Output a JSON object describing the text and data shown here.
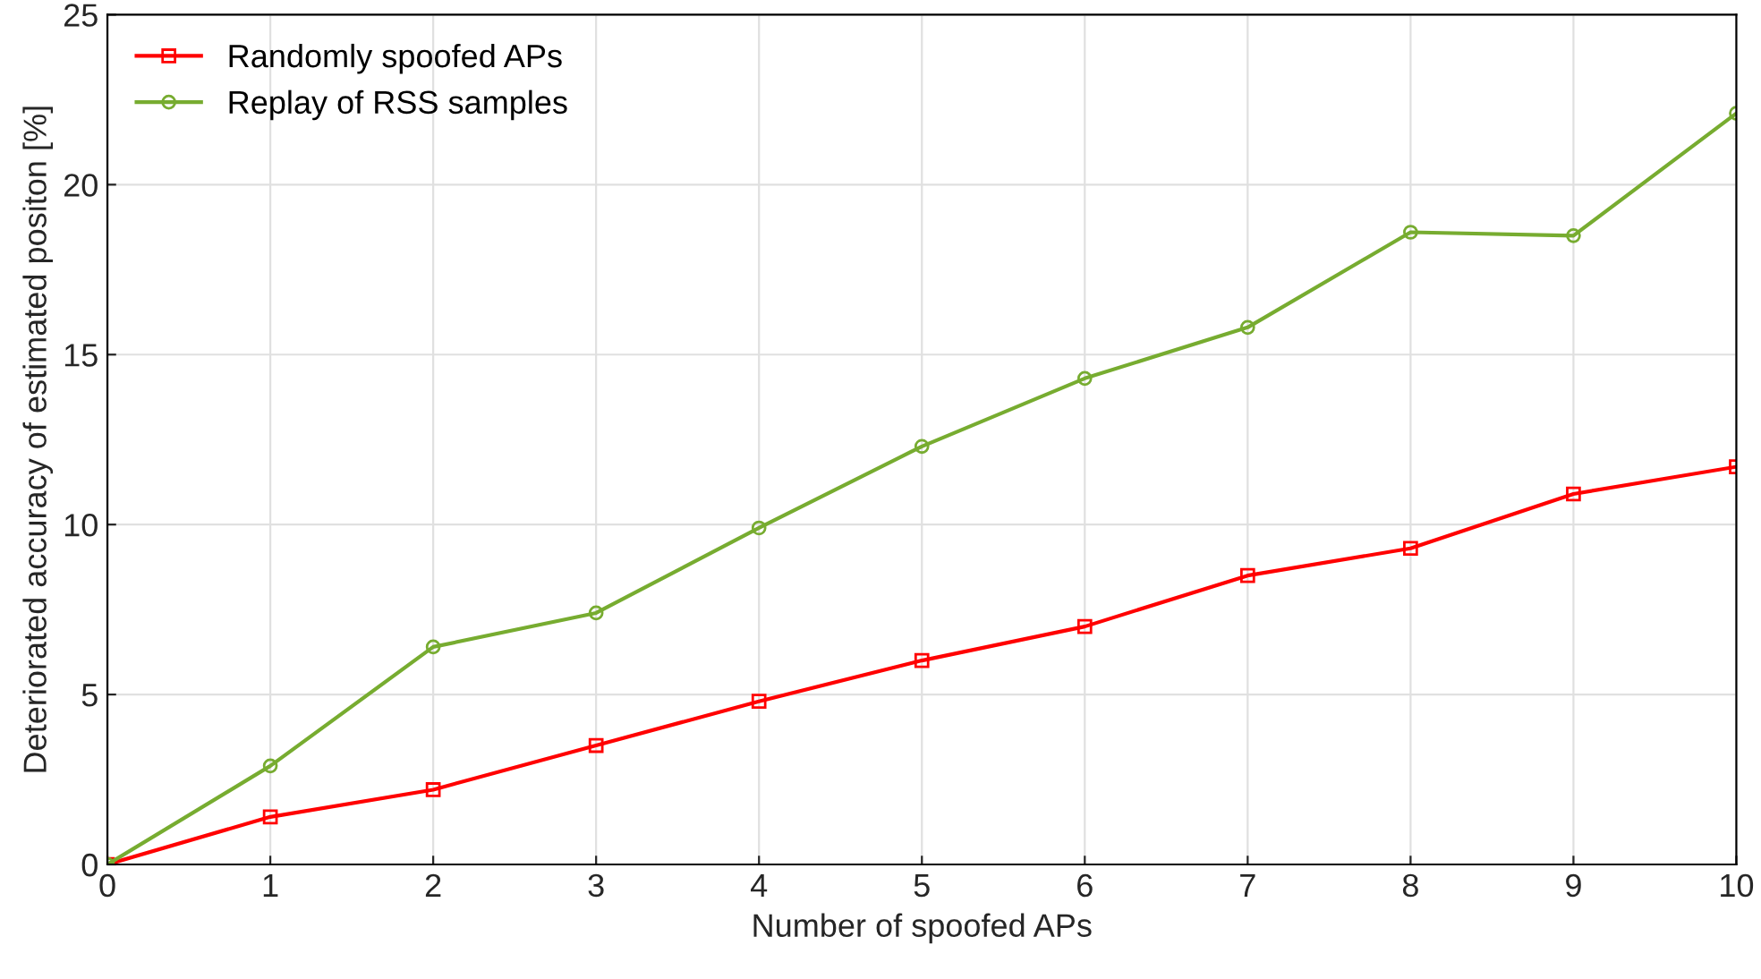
{
  "chart_data": {
    "type": "line",
    "xlabel": "Number of spoofed APs",
    "ylabel": "Deteriorated accuracy of estimated positon [%]",
    "x": [
      0,
      1,
      2,
      3,
      4,
      5,
      6,
      7,
      8,
      9,
      10
    ],
    "series": [
      {
        "name": "Randomly spoofed APs",
        "color": "#ff0000",
        "marker": "square",
        "values": [
          0,
          1.4,
          2.2,
          3.5,
          4.8,
          6.0,
          7.0,
          8.5,
          9.3,
          10.9,
          11.7
        ]
      },
      {
        "name": "Replay of RSS samples",
        "color": "#77ac30",
        "marker": "circle",
        "values": [
          0,
          2.9,
          6.4,
          7.4,
          9.9,
          12.3,
          14.3,
          15.8,
          18.6,
          18.5,
          22.1
        ]
      }
    ],
    "xlim": [
      0,
      10
    ],
    "xticks": [
      0,
      1,
      2,
      3,
      4,
      5,
      6,
      7,
      8,
      9,
      10
    ],
    "ylim": [
      0,
      25
    ],
    "yticks": [
      0,
      5,
      10,
      15,
      20,
      25
    ],
    "grid": true,
    "legend": "top left",
    "line_style": "solid"
  }
}
